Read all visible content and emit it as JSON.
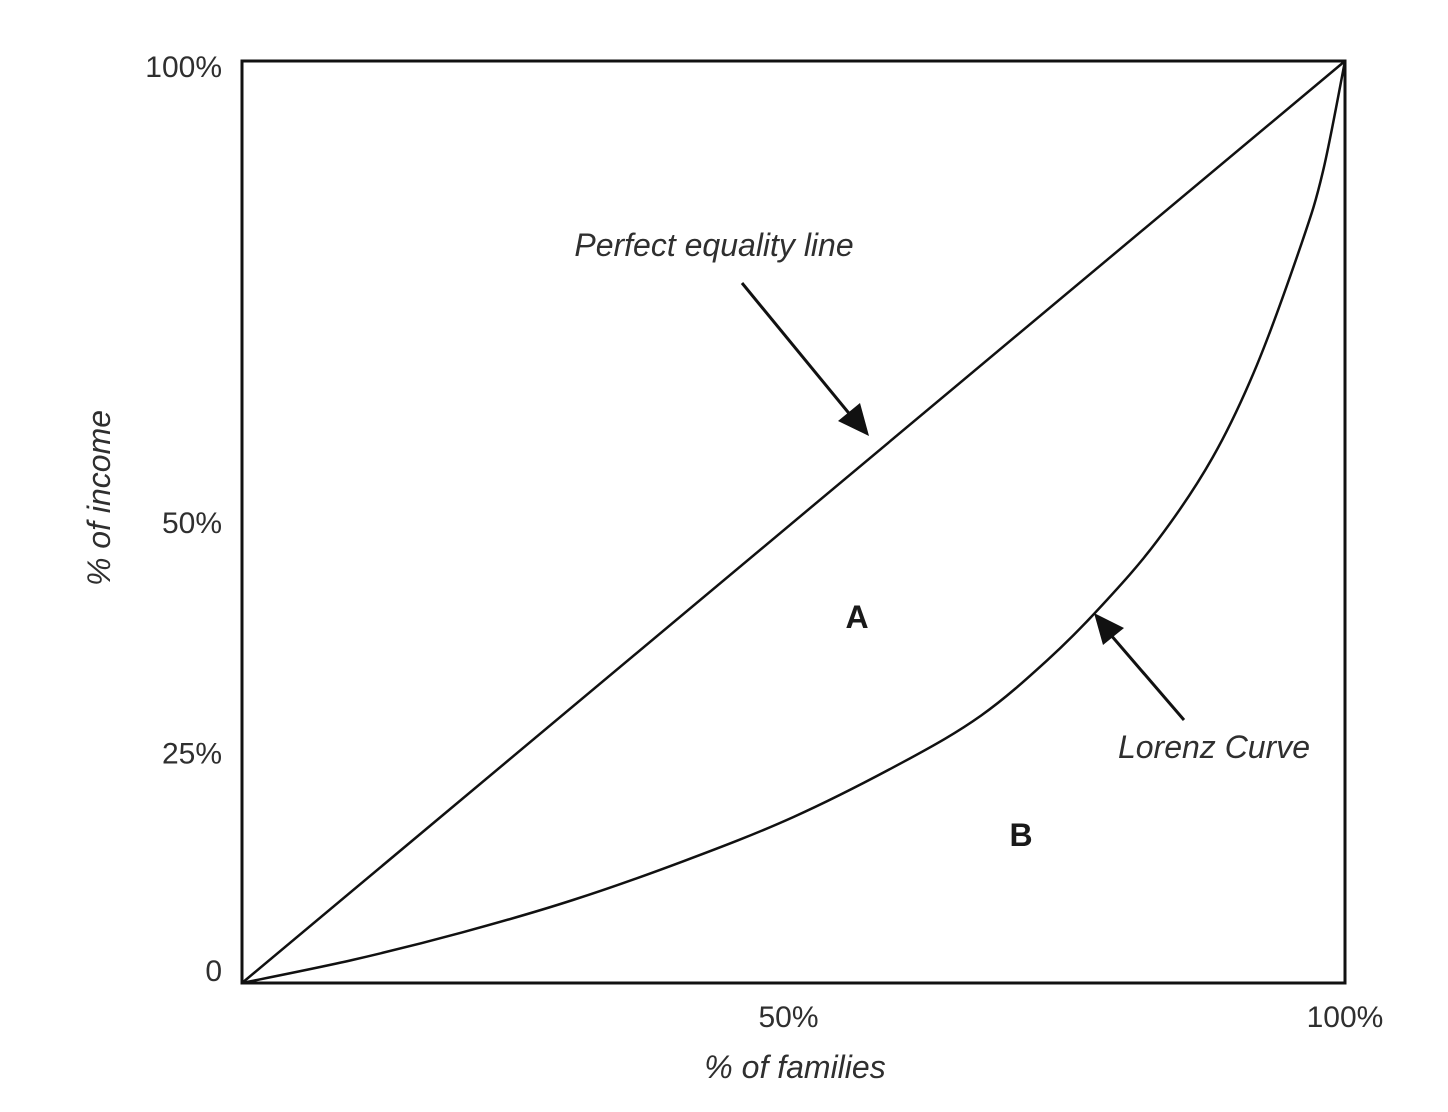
{
  "chart_data": {
    "type": "line",
    "title": "",
    "xlabel": "% of families",
    "ylabel": "% of income",
    "xlim": [
      0,
      100
    ],
    "ylim": [
      0,
      100
    ],
    "x_ticks": [
      {
        "value": 50,
        "label": "50%"
      },
      {
        "value": 100,
        "label": "100%"
      }
    ],
    "y_ticks": [
      {
        "value": 0,
        "label": "0"
      },
      {
        "value": 25,
        "label": "25%"
      },
      {
        "value": 50,
        "label": "50%"
      },
      {
        "value": 100,
        "label": "100%"
      }
    ],
    "series": [
      {
        "name": "Perfect equality line",
        "x": [
          0,
          100
        ],
        "y": [
          0,
          100
        ]
      },
      {
        "name": "Lorenz Curve",
        "x": [
          0,
          10,
          20,
          30,
          40,
          50,
          60,
          67,
          73,
          78,
          83,
          88,
          92,
          96,
          98,
          100
        ],
        "y": [
          0,
          2.5,
          5.5,
          9,
          13.2,
          18,
          24,
          29,
          35,
          41,
          48,
          57,
          67,
          80,
          88,
          100
        ]
      }
    ],
    "annotations": [
      {
        "text": "Perfect equality line",
        "series": "Perfect equality line"
      },
      {
        "text": "Lorenz Curve",
        "series": "Lorenz Curve"
      }
    ],
    "regions": [
      "A",
      "B"
    ],
    "grid": false,
    "legend": "none",
    "colors": {
      "line": "#111111",
      "text": "#2f2f2f"
    }
  }
}
